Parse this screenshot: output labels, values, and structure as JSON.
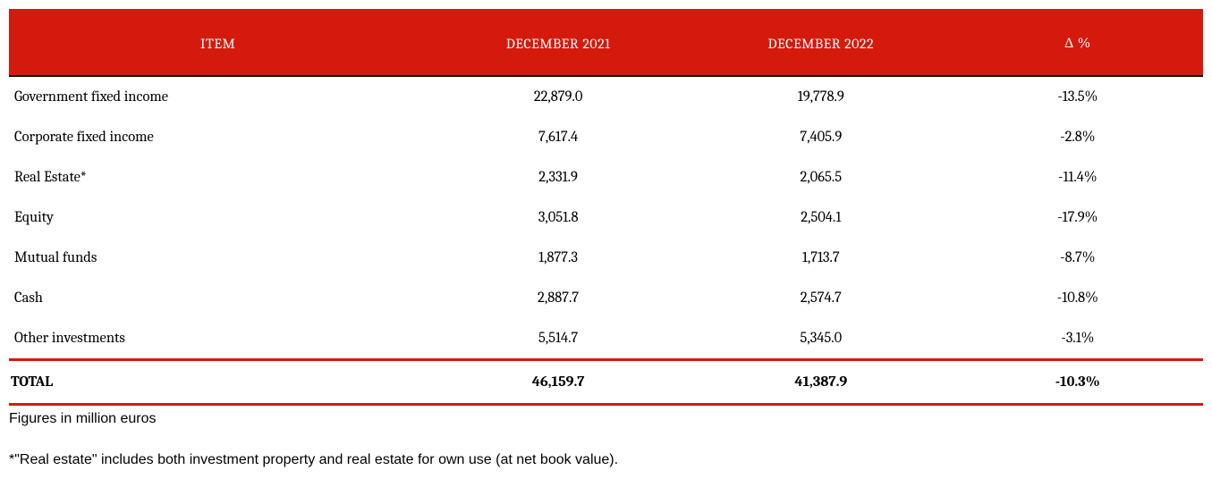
{
  "colors": {
    "header_bg": "#d41a0c",
    "accent": "#d41a0c",
    "text": "#000000",
    "bg": "#ffffff"
  },
  "table": {
    "columns": {
      "item": "ITEM",
      "dec2021": "DECEMBER 2021",
      "dec2022": "DECEMBER 2022",
      "delta": "Δ %"
    },
    "rows": [
      {
        "item": "Government fixed income",
        "dec2021": "22,879.0",
        "dec2022": "19,778.9",
        "delta": "-13.5%"
      },
      {
        "item": "Corporate fixed income",
        "dec2021": "7,617.4",
        "dec2022": "7,405.9",
        "delta": "-2.8%"
      },
      {
        "item": "Real Estate*",
        "dec2021": "2,331.9",
        "dec2022": "2,065.5",
        "delta": "-11.4%"
      },
      {
        "item": "Equity",
        "dec2021": "3,051.8",
        "dec2022": "2,504.1",
        "delta": "-17.9%"
      },
      {
        "item": "Mutual funds",
        "dec2021": "1,877.3",
        "dec2022": "1,713.7",
        "delta": "-8.7%"
      },
      {
        "item": "Cash",
        "dec2021": "2,887.7",
        "dec2022": "2,574.7",
        "delta": "-10.8%"
      },
      {
        "item": "Other investments",
        "dec2021": "5,514.7",
        "dec2022": "5,345.0",
        "delta": "-3.1%"
      }
    ],
    "total": {
      "item": "TOTAL",
      "dec2021": "46,159.7",
      "dec2022": "41,387.9",
      "delta": "-10.3%"
    }
  },
  "footnotes": {
    "units": "Figures in million euros",
    "real_estate": "*\"Real estate\" includes both investment property and real estate for own use (at net book value)."
  }
}
